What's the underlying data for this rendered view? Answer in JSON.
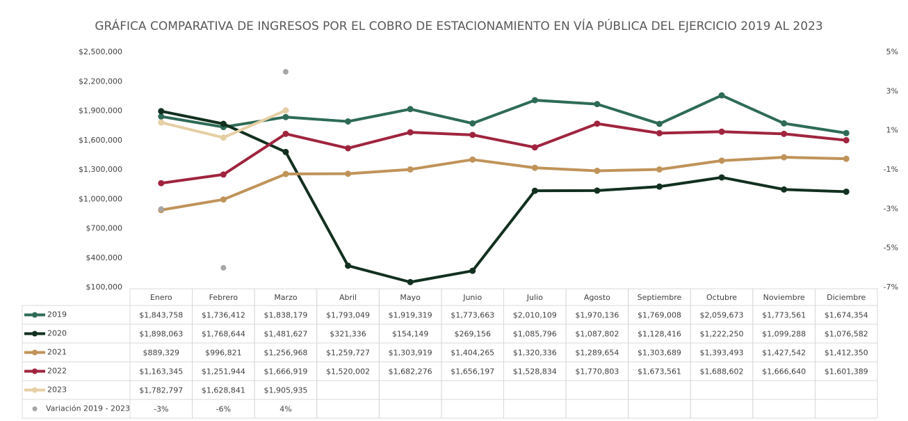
{
  "chart_data": {
    "type": "line",
    "title": "GRÁFICA COMPARATIVA DE INGRESOS POR EL COBRO DE ESTACIONAMIENTO EN VÍA PÚBLICA DEL EJERCICIO 2019 AL 2023",
    "categories": [
      "Enero",
      "Febrero",
      "Marzo",
      "Abril",
      "Mayo",
      "Junio",
      "Julio",
      "Agosto",
      "Septiembre",
      "Octubre",
      "Noviembre",
      "Diciembre"
    ],
    "ylim": [
      100000,
      2500000
    ],
    "yticks": [
      {
        "value": 100000,
        "label": "$100,000"
      },
      {
        "value": 400000,
        "label": "$400,000"
      },
      {
        "value": 700000,
        "label": "$700,000"
      },
      {
        "value": 1000000,
        "label": "$1,000,000"
      },
      {
        "value": 1300000,
        "label": "$1,300,000"
      },
      {
        "value": 1600000,
        "label": "$1,600,000"
      },
      {
        "value": 1900000,
        "label": "$1,900,000"
      },
      {
        "value": 2200000,
        "label": "$2,200,000"
      },
      {
        "value": 2500000,
        "label": "$2,500,000"
      }
    ],
    "y2lim": [
      -7,
      5
    ],
    "y2ticks": [
      {
        "value": -7,
        "label": "-7%"
      },
      {
        "value": -5,
        "label": "-5%"
      },
      {
        "value": -3,
        "label": "-3%"
      },
      {
        "value": -1,
        "label": "-1%"
      },
      {
        "value": 1,
        "label": "1%"
      },
      {
        "value": 3,
        "label": "3%"
      },
      {
        "value": 5,
        "label": "5%"
      }
    ],
    "grid": false,
    "series": [
      {
        "name": "2019",
        "type": "line",
        "color": "#2e6b57",
        "values": [
          1843758,
          1736412,
          1838179,
          1793049,
          1919319,
          1773663,
          2010109,
          1970136,
          1769008,
          2059673,
          1773561,
          1674354
        ],
        "value_labels": [
          "$1,843,758",
          "$1,736,412",
          "$1,838,179",
          "$1,793,049",
          "$1,919,319",
          "$1,773,663",
          "$2,010,109",
          "$1,970,136",
          "$1,769,008",
          "$2,059,673",
          "$1,773,561",
          "$1,674,354"
        ]
      },
      {
        "name": "2020",
        "type": "line",
        "color": "#12301f",
        "values": [
          1898063,
          1768644,
          1481627,
          321336,
          154149,
          269156,
          1085796,
          1087802,
          1128416,
          1222250,
          1099288,
          1076582
        ],
        "value_labels": [
          "$1,898,063",
          "$1,768,644",
          "$1,481,627",
          "$321,336",
          "$154,149",
          "$269,156",
          "$1,085,796",
          "$1,087,802",
          "$1,128,416",
          "$1,222,250",
          "$1,099,288",
          "$1,076,582"
        ]
      },
      {
        "name": "2021",
        "type": "line",
        "color": "#c0935a",
        "values": [
          889329,
          996821,
          1256968,
          1259727,
          1303919,
          1404265,
          1320336,
          1289654,
          1303689,
          1393493,
          1427542,
          1412350
        ],
        "value_labels": [
          "$889,329",
          "$996,821",
          "$1,256,968",
          "$1,259,727",
          "$1,303,919",
          "$1,404,265",
          "$1,320,336",
          "$1,289,654",
          "$1,303,689",
          "$1,393,493",
          "$1,427,542",
          "$1,412,350"
        ]
      },
      {
        "name": "2022",
        "type": "line",
        "color": "#a0243e",
        "values": [
          1163345,
          1251944,
          1666919,
          1520002,
          1682276,
          1656197,
          1528834,
          1770803,
          1673561,
          1688602,
          1666640,
          1601389
        ],
        "value_labels": [
          "$1,163,345",
          "$1,251,944",
          "$1,666,919",
          "$1,520,002",
          "$1,682,276",
          "$1,656,197",
          "$1,528,834",
          "$1,770,803",
          "$1,673,561",
          "$1,688,602",
          "$1,666,640",
          "$1,601,389"
        ]
      },
      {
        "name": "2023",
        "type": "line",
        "color": "#e6cfa5",
        "values": [
          1782797,
          1628841,
          1905935,
          null,
          null,
          null,
          null,
          null,
          null,
          null,
          null,
          null
        ],
        "value_labels": [
          "$1,782,797",
          "$1,628,841",
          "$1,905,935",
          null,
          null,
          null,
          null,
          null,
          null,
          null,
          null,
          null
        ]
      },
      {
        "name": "Variación 2019 - 2023",
        "type": "scatter",
        "axis": "y2",
        "color": "#a6a6a6",
        "values": [
          -3,
          -6,
          4,
          null,
          null,
          null,
          null,
          null,
          null,
          null,
          null,
          null
        ],
        "value_labels": [
          "-3%",
          "-6%",
          "4%",
          null,
          null,
          null,
          null,
          null,
          null,
          null,
          null,
          null
        ]
      }
    ]
  }
}
